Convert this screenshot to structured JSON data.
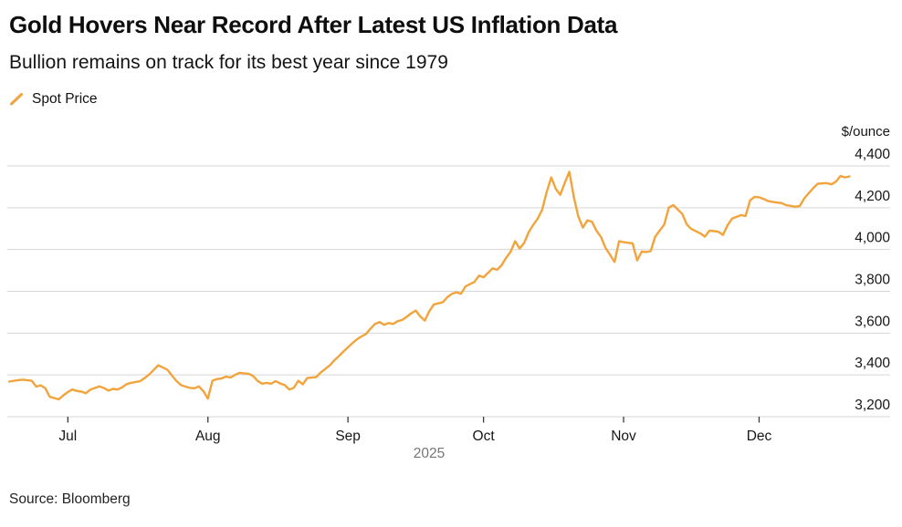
{
  "header": {
    "title": "Gold Hovers Near Record After Latest US Inflation Data",
    "subtitle": "Bullion remains on track for its best year since 1979"
  },
  "legend": {
    "label": "Spot Price"
  },
  "footer": {
    "source": "Source: Bloomberg"
  },
  "colors": {
    "line": "#F2A43C",
    "grid": "#D7D7D7",
    "tick": "#3a3a3a",
    "axis_text": "#161616",
    "year_text": "#767676"
  },
  "chart_data": {
    "type": "line",
    "title": "Gold Hovers Near Record After Latest US Inflation Data",
    "series_name": "Spot Price",
    "unit_label": "$/ounce",
    "legend_position": "top-left",
    "grid": "horizontal",
    "x_axis": {
      "range": [
        "2025-06-18",
        "2025-12-30"
      ],
      "ticks": [
        {
          "date": "2025-07-01",
          "label": "Jul"
        },
        {
          "date": "2025-08-01",
          "label": "Aug"
        },
        {
          "date": "2025-09-01",
          "label": "Sep"
        },
        {
          "date": "2025-10-01",
          "label": "Oct"
        },
        {
          "date": "2025-11-01",
          "label": "Nov"
        },
        {
          "date": "2025-12-01",
          "label": "Dec"
        }
      ],
      "year_label": "2025"
    },
    "y_axis": {
      "min": 3200,
      "max": 4400,
      "ticks": [
        {
          "value": 4400,
          "label": "4,400"
        },
        {
          "value": 4200,
          "label": "4,200"
        },
        {
          "value": 4000,
          "label": "4,000"
        },
        {
          "value": 3800,
          "label": "3,800"
        },
        {
          "value": 3600,
          "label": "3,600"
        },
        {
          "value": 3400,
          "label": "3,400"
        },
        {
          "value": 3200,
          "label": "3,200"
        }
      ]
    },
    "points": [
      [
        "2025-06-18",
        3368
      ],
      [
        "2025-06-20",
        3375
      ],
      [
        "2025-06-21",
        3377
      ],
      [
        "2025-06-23",
        3372
      ],
      [
        "2025-06-24",
        3344
      ],
      [
        "2025-06-25",
        3350
      ],
      [
        "2025-06-26",
        3336
      ],
      [
        "2025-06-27",
        3295
      ],
      [
        "2025-06-29",
        3283
      ],
      [
        "2025-06-30",
        3302
      ],
      [
        "2025-07-01",
        3318
      ],
      [
        "2025-07-02",
        3330
      ],
      [
        "2025-07-03",
        3323
      ],
      [
        "2025-07-04",
        3320
      ],
      [
        "2025-07-05",
        3312
      ],
      [
        "2025-07-06",
        3330
      ],
      [
        "2025-07-08",
        3345
      ],
      [
        "2025-07-09",
        3337
      ],
      [
        "2025-07-10",
        3325
      ],
      [
        "2025-07-11",
        3333
      ],
      [
        "2025-07-12",
        3330
      ],
      [
        "2025-07-13",
        3340
      ],
      [
        "2025-07-14",
        3356
      ],
      [
        "2025-07-15",
        3362
      ],
      [
        "2025-07-17",
        3370
      ],
      [
        "2025-07-18",
        3385
      ],
      [
        "2025-07-19",
        3402
      ],
      [
        "2025-07-20",
        3424
      ],
      [
        "2025-07-21",
        3446
      ],
      [
        "2025-07-23",
        3425
      ],
      [
        "2025-07-24",
        3398
      ],
      [
        "2025-07-25",
        3372
      ],
      [
        "2025-07-26",
        3352
      ],
      [
        "2025-07-27",
        3344
      ],
      [
        "2025-07-28",
        3338
      ],
      [
        "2025-07-29",
        3336
      ],
      [
        "2025-07-30",
        3345
      ],
      [
        "2025-07-31",
        3322
      ],
      [
        "2025-08-01",
        3287
      ],
      [
        "2025-08-02",
        3372
      ],
      [
        "2025-08-03",
        3380
      ],
      [
        "2025-08-04",
        3383
      ],
      [
        "2025-08-05",
        3392
      ],
      [
        "2025-08-06",
        3387
      ],
      [
        "2025-08-07",
        3400
      ],
      [
        "2025-08-08",
        3410
      ],
      [
        "2025-08-10",
        3405
      ],
      [
        "2025-08-11",
        3395
      ],
      [
        "2025-08-12",
        3371
      ],
      [
        "2025-08-13",
        3358
      ],
      [
        "2025-08-14",
        3362
      ],
      [
        "2025-08-15",
        3358
      ],
      [
        "2025-08-16",
        3370
      ],
      [
        "2025-08-17",
        3359
      ],
      [
        "2025-08-18",
        3351
      ],
      [
        "2025-08-19",
        3330
      ],
      [
        "2025-08-20",
        3338
      ],
      [
        "2025-08-21",
        3372
      ],
      [
        "2025-08-22",
        3355
      ],
      [
        "2025-08-23",
        3385
      ],
      [
        "2025-08-24",
        3387
      ],
      [
        "2025-08-25",
        3390
      ],
      [
        "2025-08-26",
        3412
      ],
      [
        "2025-08-28",
        3446
      ],
      [
        "2025-08-29",
        3470
      ],
      [
        "2025-08-30",
        3490
      ],
      [
        "2025-08-31",
        3512
      ],
      [
        "2025-09-02",
        3552
      ],
      [
        "2025-09-03",
        3571
      ],
      [
        "2025-09-04",
        3584
      ],
      [
        "2025-09-05",
        3596
      ],
      [
        "2025-09-06",
        3622
      ],
      [
        "2025-09-07",
        3644
      ],
      [
        "2025-09-08",
        3653
      ],
      [
        "2025-09-09",
        3640
      ],
      [
        "2025-09-10",
        3648
      ],
      [
        "2025-09-11",
        3644
      ],
      [
        "2025-09-12",
        3657
      ],
      [
        "2025-09-13",
        3663
      ],
      [
        "2025-09-14",
        3678
      ],
      [
        "2025-09-15",
        3695
      ],
      [
        "2025-09-16",
        3708
      ],
      [
        "2025-09-17",
        3680
      ],
      [
        "2025-09-18",
        3660
      ],
      [
        "2025-09-19",
        3705
      ],
      [
        "2025-09-20",
        3737
      ],
      [
        "2025-09-22",
        3748
      ],
      [
        "2025-09-23",
        3772
      ],
      [
        "2025-09-24",
        3788
      ],
      [
        "2025-09-25",
        3795
      ],
      [
        "2025-09-26",
        3788
      ],
      [
        "2025-09-27",
        3823
      ],
      [
        "2025-09-29",
        3845
      ],
      [
        "2025-09-30",
        3875
      ],
      [
        "2025-10-01",
        3867
      ],
      [
        "2025-10-02",
        3888
      ],
      [
        "2025-10-03",
        3910
      ],
      [
        "2025-10-04",
        3903
      ],
      [
        "2025-10-05",
        3925
      ],
      [
        "2025-10-06",
        3960
      ],
      [
        "2025-10-07",
        3990
      ],
      [
        "2025-10-08",
        4040
      ],
      [
        "2025-10-09",
        4005
      ],
      [
        "2025-10-10",
        4032
      ],
      [
        "2025-10-11",
        4083
      ],
      [
        "2025-10-12",
        4118
      ],
      [
        "2025-10-13",
        4148
      ],
      [
        "2025-10-14",
        4191
      ],
      [
        "2025-10-15",
        4277
      ],
      [
        "2025-10-16",
        4345
      ],
      [
        "2025-10-17",
        4290
      ],
      [
        "2025-10-18",
        4262
      ],
      [
        "2025-10-19",
        4320
      ],
      [
        "2025-10-20",
        4372
      ],
      [
        "2025-10-21",
        4250
      ],
      [
        "2025-10-22",
        4157
      ],
      [
        "2025-10-23",
        4105
      ],
      [
        "2025-10-24",
        4140
      ],
      [
        "2025-10-25",
        4133
      ],
      [
        "2025-10-26",
        4090
      ],
      [
        "2025-10-27",
        4060
      ],
      [
        "2025-10-28",
        4008
      ],
      [
        "2025-10-29",
        3975
      ],
      [
        "2025-10-30",
        3940
      ],
      [
        "2025-10-31",
        4040
      ],
      [
        "2025-11-01",
        4035
      ],
      [
        "2025-11-02",
        4032
      ],
      [
        "2025-11-03",
        4030
      ],
      [
        "2025-11-04",
        3948
      ],
      [
        "2025-11-05",
        3990
      ],
      [
        "2025-11-06",
        3988
      ],
      [
        "2025-11-07",
        3992
      ],
      [
        "2025-11-08",
        4062
      ],
      [
        "2025-11-10",
        4120
      ],
      [
        "2025-11-11",
        4200
      ],
      [
        "2025-11-12",
        4213
      ],
      [
        "2025-11-14",
        4170
      ],
      [
        "2025-11-15",
        4120
      ],
      [
        "2025-11-16",
        4098
      ],
      [
        "2025-11-18",
        4077
      ],
      [
        "2025-11-19",
        4062
      ],
      [
        "2025-11-20",
        4090
      ],
      [
        "2025-11-21",
        4088
      ],
      [
        "2025-11-22",
        4085
      ],
      [
        "2025-11-23",
        4070
      ],
      [
        "2025-11-24",
        4115
      ],
      [
        "2025-11-25",
        4148
      ],
      [
        "2025-11-27",
        4165
      ],
      [
        "2025-11-28",
        4160
      ],
      [
        "2025-11-29",
        4235
      ],
      [
        "2025-11-30",
        4252
      ],
      [
        "2025-12-01",
        4250
      ],
      [
        "2025-12-02",
        4242
      ],
      [
        "2025-12-03",
        4232
      ],
      [
        "2025-12-04",
        4228
      ],
      [
        "2025-12-06",
        4222
      ],
      [
        "2025-12-07",
        4212
      ],
      [
        "2025-12-09",
        4205
      ],
      [
        "2025-12-10",
        4208
      ],
      [
        "2025-12-11",
        4245
      ],
      [
        "2025-12-13",
        4295
      ],
      [
        "2025-12-14",
        4315
      ],
      [
        "2025-12-16",
        4318
      ],
      [
        "2025-12-17",
        4312
      ],
      [
        "2025-12-18",
        4325
      ],
      [
        "2025-12-19",
        4352
      ],
      [
        "2025-12-20",
        4345
      ],
      [
        "2025-12-21",
        4350
      ]
    ]
  }
}
